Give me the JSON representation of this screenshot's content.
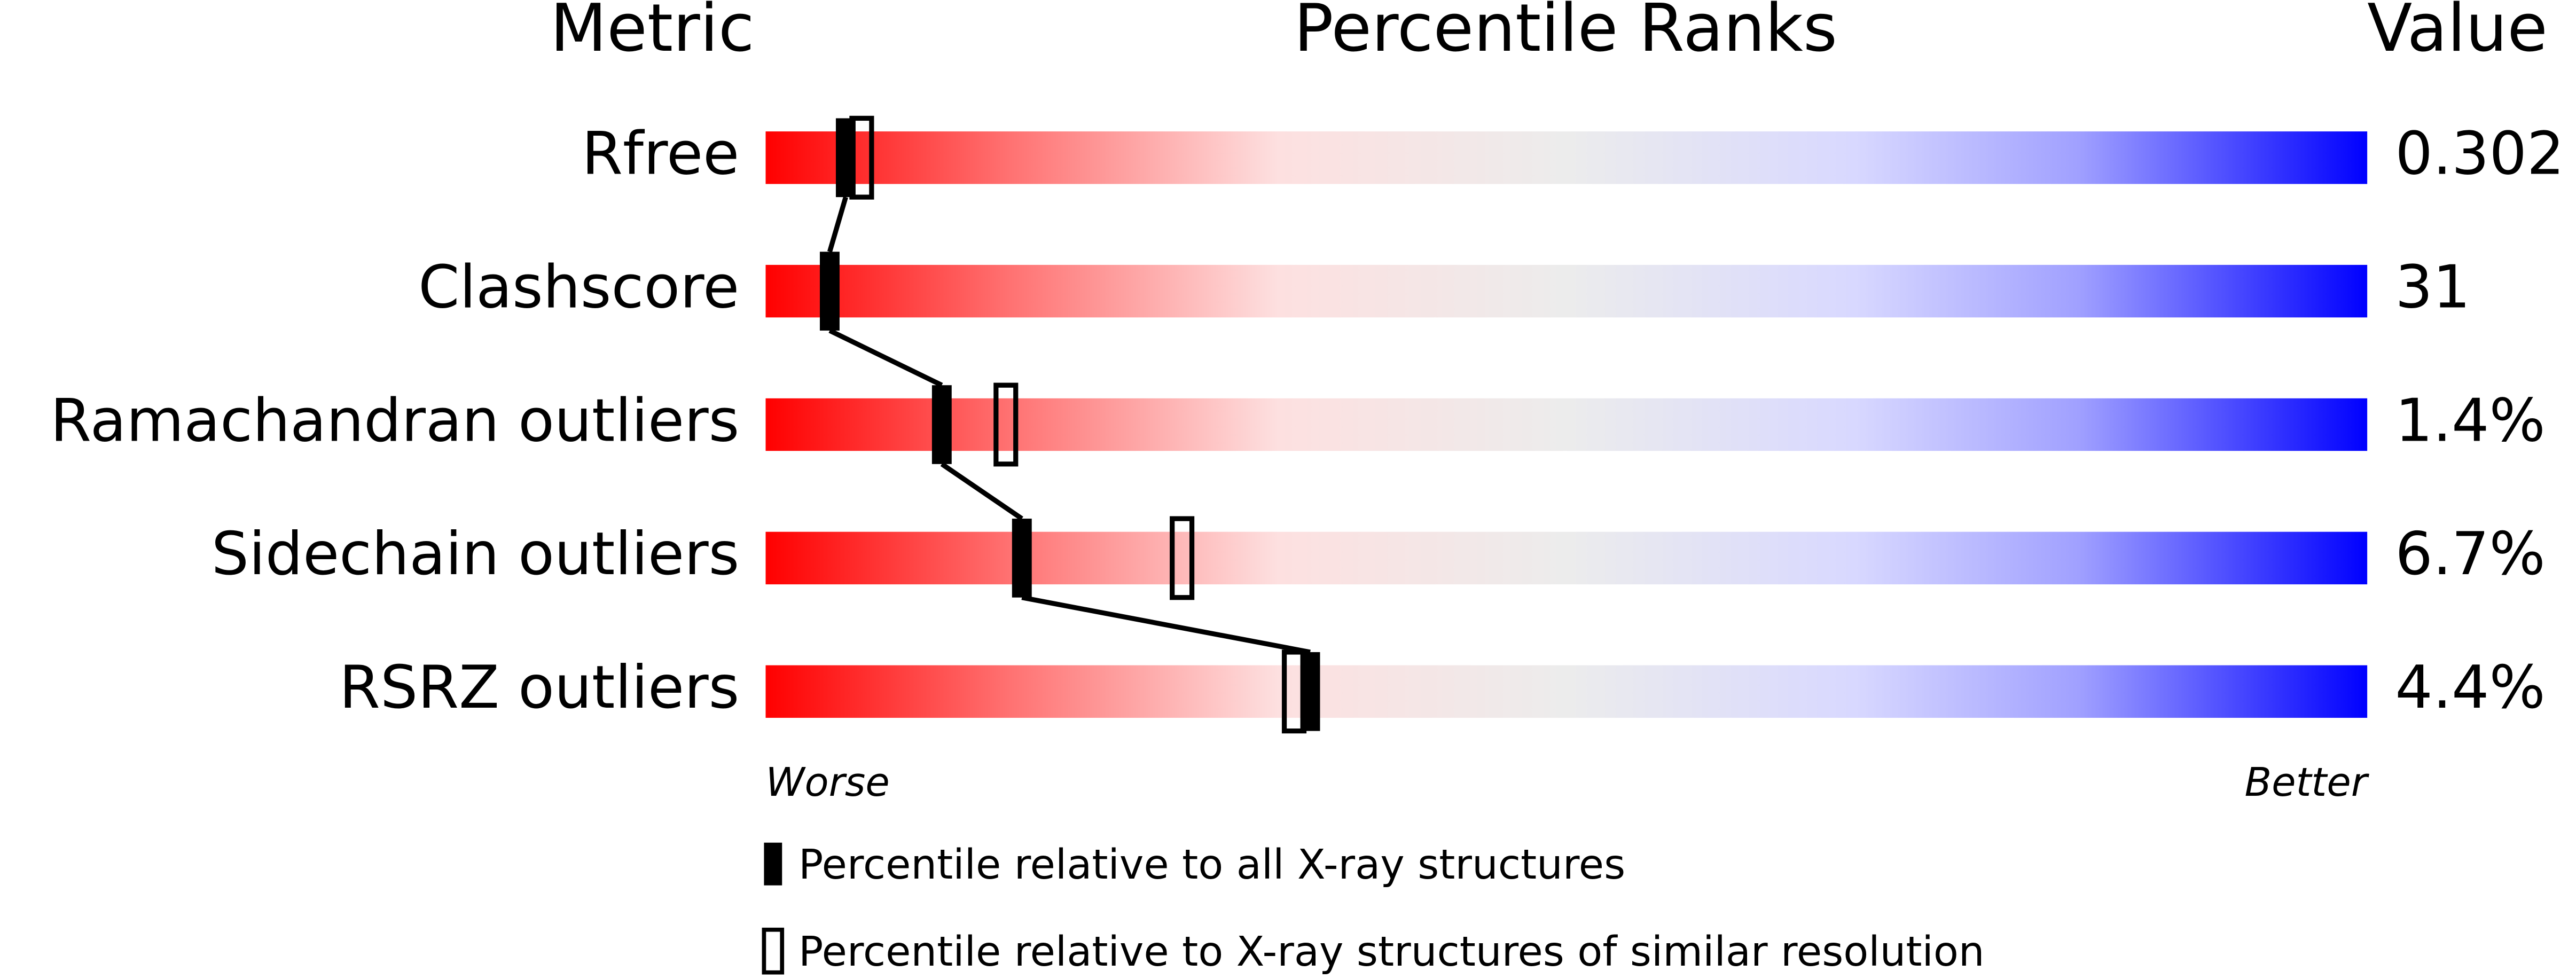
{
  "chart_data": {
    "type": "percentile-slider",
    "headers": {
      "metric": "Metric",
      "ranks": "Percentile Ranks",
      "value": "Value"
    },
    "categories": [
      "Rfree",
      "Clashscore",
      "Ramachandran outliers",
      "Sidechain outliers",
      "RSRZ outliers"
    ],
    "metric_values": [
      "0.302",
      "31",
      "1.4%",
      "6.7%",
      "4.4%"
    ],
    "series": [
      {
        "name": "Percentile relative to all X-ray structures",
        "color": "#000000",
        "filled": true,
        "values": [
          5,
          4,
          11,
          16,
          34
        ]
      },
      {
        "name": "Percentile relative to X-ray structures of similar resolution",
        "color": "#000000",
        "filled": false,
        "values": [
          6,
          null,
          15,
          26,
          33
        ]
      }
    ],
    "xlim": [
      0,
      100
    ],
    "worse": "Worse",
    "better": "Better"
  }
}
